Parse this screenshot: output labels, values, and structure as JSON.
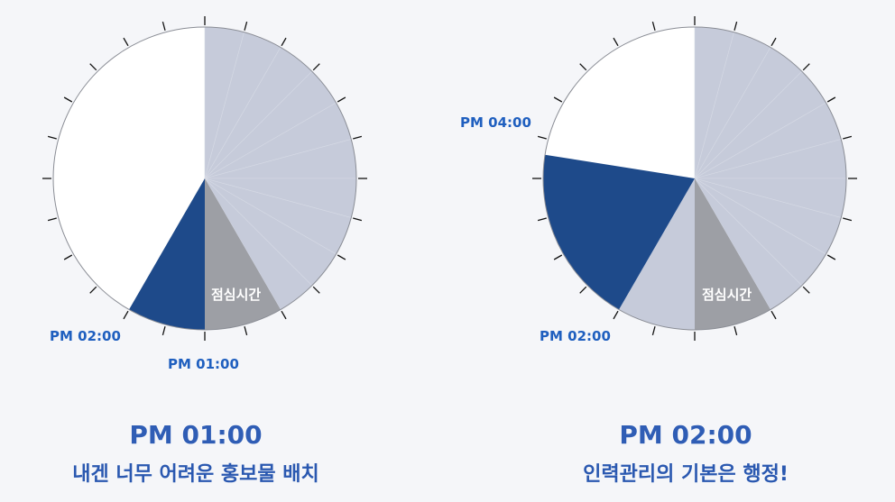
{
  "colors": {
    "background": "#f5f6f9",
    "current_slice": "#1e4a8a",
    "lunch_slice": "#9d9fa5",
    "filled_slice": "#c6cbda",
    "empty_slice": "#ffffff",
    "label_blue": "#1f5fbf"
  },
  "clocks": [
    {
      "id": "left",
      "slices_hours_from_top": {
        "filled": [
          0,
          5
        ],
        "lunch": [
          5,
          6
        ],
        "current": [
          6,
          7
        ],
        "empty": [
          7,
          12
        ]
      },
      "lunch_label": "점심시간",
      "time_labels": [
        "PM 02:00",
        "PM 01:00"
      ],
      "caption_time": "PM 01:00",
      "caption_text": "내겐 너무 어려운 홍보물 배치"
    },
    {
      "id": "right",
      "slices_hours_from_top": {
        "filled": [
          0,
          5
        ],
        "lunch": [
          5,
          6
        ],
        "filled_after_lunch": [
          6,
          7
        ],
        "current": [
          7,
          9.3
        ],
        "empty": [
          9.3,
          12
        ]
      },
      "lunch_label": "점심시간",
      "time_labels": [
        "PM 04:00",
        "PM 02:00"
      ],
      "caption_time": "PM 02:00",
      "caption_text": "인력관리의 기본은 행정!"
    }
  ]
}
